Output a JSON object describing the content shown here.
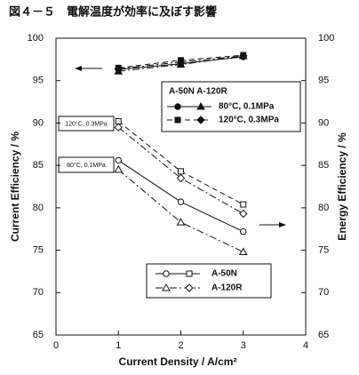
{
  "chart_data": {
    "type": "line",
    "title": "図４－５　電解温度が効率に及ぼす影響",
    "x_label": "Current Density / A/cm²",
    "y_label": "Current Efficiency / %",
    "y2_label": "Energy Efficiency / %",
    "x": [
      1,
      2,
      3
    ],
    "xlim": [
      0,
      4
    ],
    "xticks": [
      0,
      1,
      2,
      3,
      4
    ],
    "ylim": [
      65,
      100
    ],
    "yticks": [
      65,
      70,
      75,
      80,
      85,
      90,
      95,
      100
    ],
    "y2lim": [
      65,
      100
    ],
    "y2ticks": [
      65,
      70,
      75,
      80,
      85,
      90,
      95,
      100
    ],
    "series": [
      {
        "marker": "circle",
        "filled": true,
        "dash": "solid",
        "color": "#111",
        "values": [
          96.3,
          97.0,
          97.8
        ]
      },
      {
        "marker": "triangle",
        "filled": true,
        "dash": "dashdot",
        "color": "#111",
        "values": [
          96.1,
          96.9,
          97.9
        ]
      },
      {
        "marker": "square",
        "filled": true,
        "dash": "dashed",
        "color": "#111",
        "values": [
          96.5,
          97.4,
          98.0
        ]
      },
      {
        "marker": "diamond",
        "filled": true,
        "dash": "dashdot",
        "color": "#111",
        "values": [
          96.4,
          97.2,
          97.9
        ]
      },
      {
        "marker": "circle",
        "filled": false,
        "dash": "solid",
        "color": "#111",
        "axis": "y2",
        "values": [
          85.6,
          80.7,
          77.2
        ]
      },
      {
        "marker": "triangle",
        "filled": false,
        "dash": "dashdot",
        "color": "#111",
        "axis": "y2",
        "values": [
          84.5,
          78.3,
          74.8
        ]
      },
      {
        "marker": "square",
        "filled": false,
        "dash": "dashed",
        "color": "#111",
        "axis": "y2",
        "values": [
          90.2,
          84.3,
          80.4
        ]
      },
      {
        "marker": "diamond",
        "filled": false,
        "dash": "dashdot",
        "color": "#111",
        "axis": "y2",
        "values": [
          89.5,
          83.5,
          79.3
        ]
      }
    ],
    "annotations": [
      "120°C, 0.3MPa",
      "80°C, 0.1MPa"
    ],
    "legend_top": {
      "header": "A-50N  A-120R",
      "rows": [
        "80°C, 0.1MPa",
        "120°C, 0.3MPa"
      ]
    },
    "legend_bottom": [
      "A-50N",
      "A-120R"
    ]
  }
}
